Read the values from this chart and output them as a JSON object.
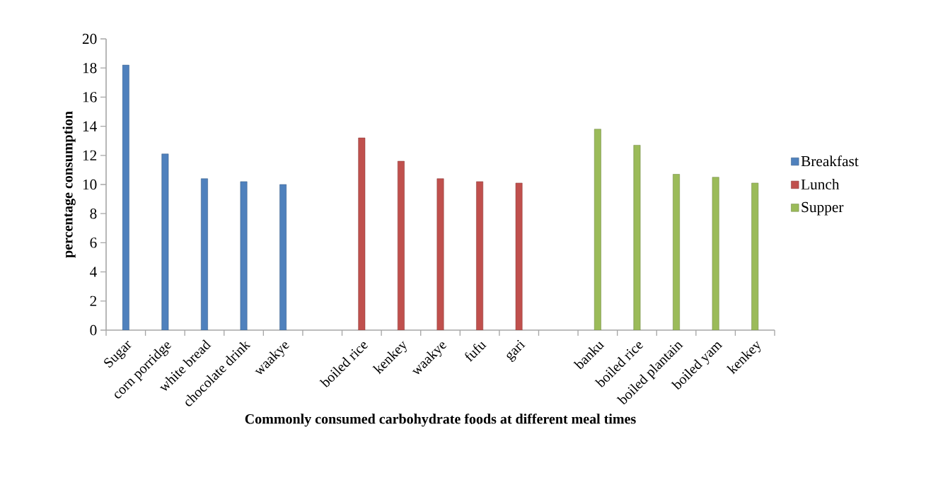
{
  "chart_data": {
    "type": "bar",
    "xlabel": "Commonly consumed carbohydrate foods  at different meal times",
    "ylabel": "percentage consumption",
    "categories": [
      "Sugar",
      "corn porridge",
      "white bread",
      "chocolate drink",
      "waakye",
      null,
      "boiled rice",
      "kenkey",
      "waakye",
      "fufu",
      "gari",
      null,
      "banku",
      "boiled rice",
      "boiled plantain",
      "boiled yam",
      "kenkey"
    ],
    "series": [
      {
        "name": "Breakfast",
        "color": "#4f81bd",
        "values": [
          18.2,
          12.1,
          10.4,
          10.2,
          10.0,
          null,
          null,
          null,
          null,
          null,
          null,
          null,
          null,
          null,
          null,
          null,
          null
        ]
      },
      {
        "name": "Lunch",
        "color": "#c0504d",
        "values": [
          null,
          null,
          null,
          null,
          null,
          null,
          13.2,
          11.6,
          10.4,
          10.2,
          10.1,
          null,
          null,
          null,
          null,
          null,
          null
        ]
      },
      {
        "name": "Supper",
        "color": "#9bbb59",
        "values": [
          null,
          null,
          null,
          null,
          null,
          null,
          null,
          null,
          null,
          null,
          null,
          null,
          13.8,
          12.7,
          10.7,
          10.5,
          10.1
        ]
      }
    ],
    "ylim": [
      0,
      20
    ],
    "yticks": [
      0,
      2,
      4,
      6,
      8,
      10,
      12,
      14,
      16,
      18,
      20
    ],
    "legend": "right",
    "grid": false
  }
}
